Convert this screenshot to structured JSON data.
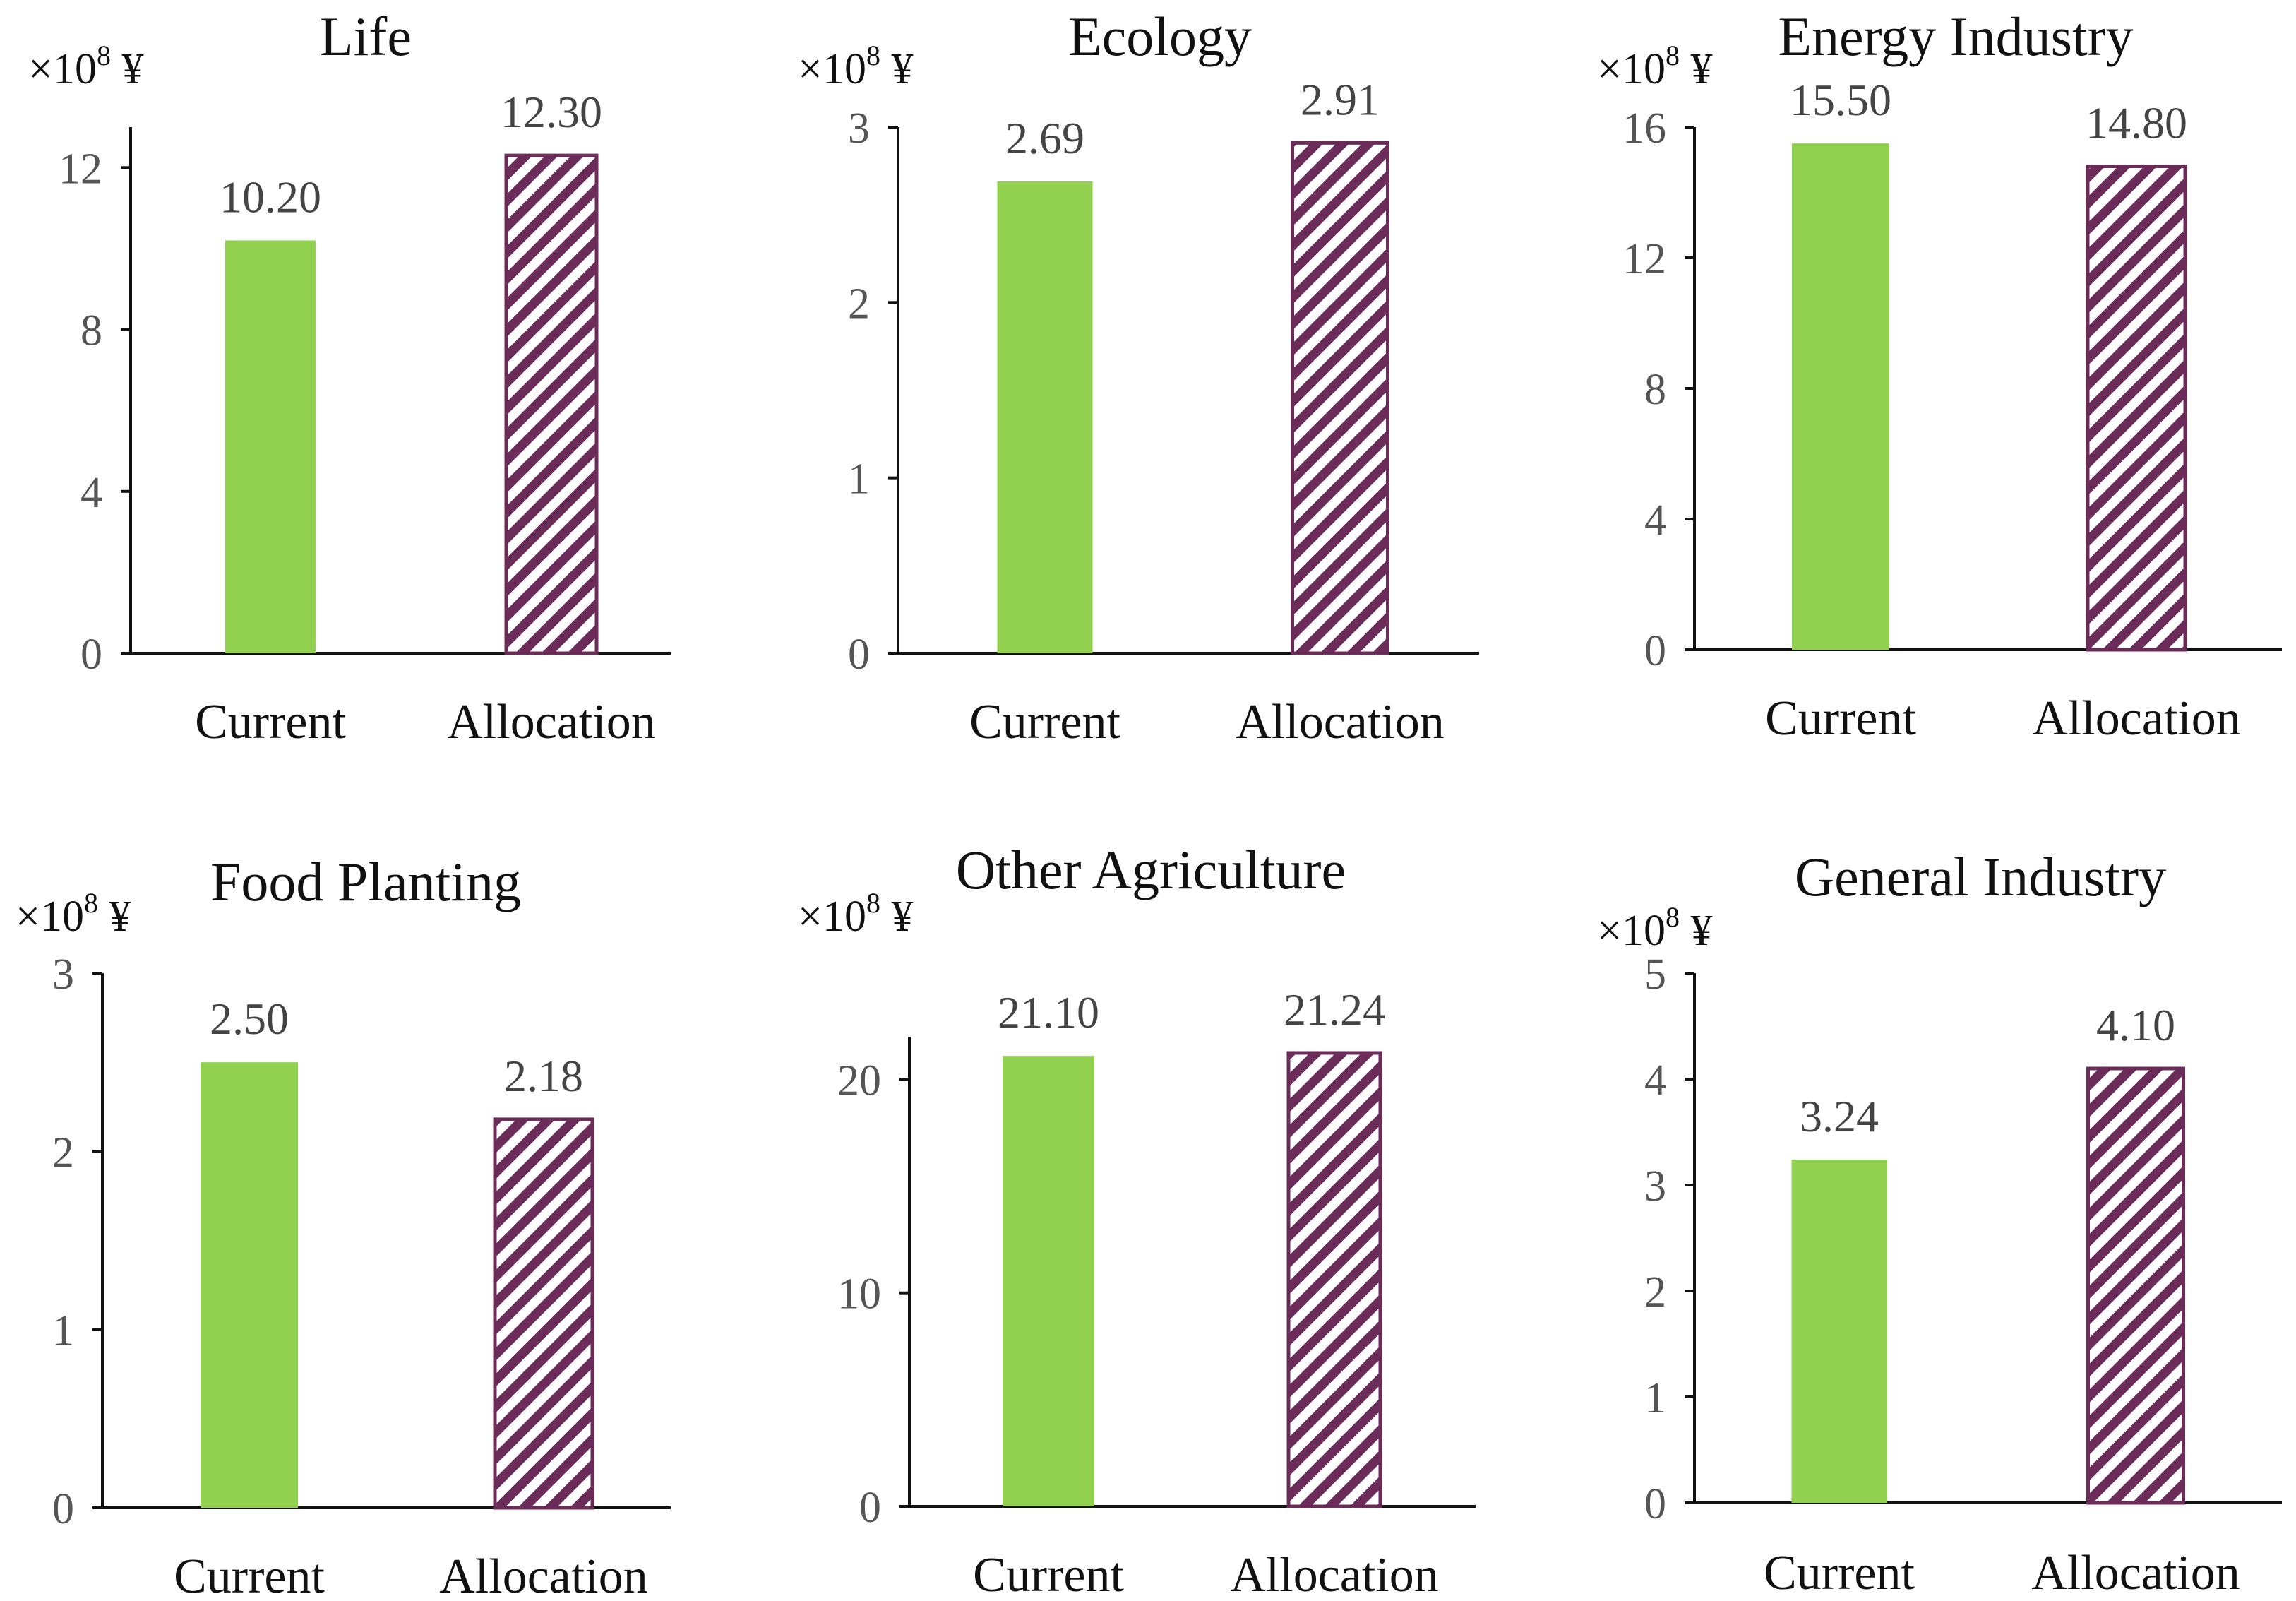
{
  "chart_data": [
    {
      "type": "bar",
      "title": "Life",
      "unit": {
        "prefix": "×10",
        "exp": "8",
        "suffix": " ¥"
      },
      "categories": [
        "Current",
        "Allocation"
      ],
      "values": [
        10.2,
        12.3
      ],
      "value_labels": [
        "10.20",
        "12.30"
      ],
      "yticks": [
        0,
        4,
        8,
        12
      ],
      "ylim": [
        0,
        13
      ]
    },
    {
      "type": "bar",
      "title": "Ecology",
      "unit": {
        "prefix": "×10",
        "exp": "8",
        "suffix": " ¥"
      },
      "categories": [
        "Current",
        "Allocation"
      ],
      "values": [
        2.69,
        2.91
      ],
      "value_labels": [
        "2.69",
        "2.91"
      ],
      "yticks": [
        0,
        1,
        2,
        3
      ],
      "ylim": [
        0,
        3
      ]
    },
    {
      "type": "bar",
      "title": "Energy Industry",
      "unit": {
        "prefix": "×10",
        "exp": "8",
        "suffix": " ¥"
      },
      "categories": [
        "Current",
        "Allocation"
      ],
      "values": [
        15.5,
        14.8
      ],
      "value_labels": [
        "15.50",
        "14.80"
      ],
      "yticks": [
        0,
        4,
        8,
        12,
        16
      ],
      "ylim": [
        0,
        16
      ]
    },
    {
      "type": "bar",
      "title": "Food Planting",
      "unit": {
        "prefix": "×10",
        "exp": "8",
        "suffix": " ¥"
      },
      "categories": [
        "Current",
        "Allocation"
      ],
      "values": [
        2.5,
        2.18
      ],
      "value_labels": [
        "2.50",
        "2.18"
      ],
      "yticks": [
        0,
        1,
        2,
        3
      ],
      "ylim": [
        0,
        3
      ]
    },
    {
      "type": "bar",
      "title": "Other Agriculture",
      "unit": {
        "prefix": "×10",
        "exp": "8",
        "suffix": " ¥"
      },
      "categories": [
        "Current",
        "Allocation"
      ],
      "values": [
        21.1,
        21.24
      ],
      "value_labels": [
        "21.10",
        "21.24"
      ],
      "yticks": [
        0,
        10,
        20
      ],
      "ylim": [
        0,
        22
      ]
    },
    {
      "type": "bar",
      "title": "General Industry",
      "unit": {
        "prefix": "×10",
        "exp": "8",
        "suffix": " ¥"
      },
      "categories": [
        "Current",
        "Allocation"
      ],
      "values": [
        3.24,
        4.1
      ],
      "value_labels": [
        "3.24",
        "4.10"
      ],
      "yticks": [
        0,
        1,
        2,
        3,
        4,
        5
      ],
      "ylim": [
        0,
        5
      ]
    }
  ],
  "colors": {
    "current": "#92d050",
    "allocation_stripe": "#6b2c59"
  }
}
